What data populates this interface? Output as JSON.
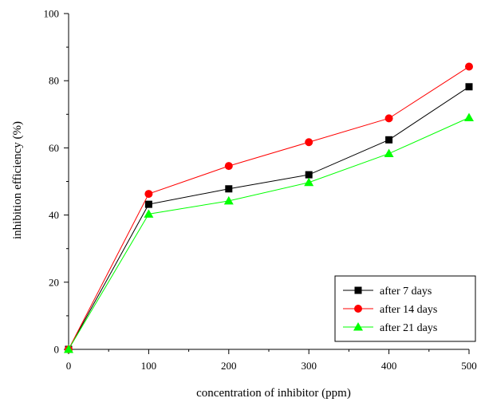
{
  "chart_data": {
    "type": "line",
    "title": "",
    "xlabel": "concentration of inhibitor (ppm)",
    "ylabel": "inhibition efficiency (%)",
    "xlim": [
      0,
      500
    ],
    "ylim": [
      0,
      100
    ],
    "xticks": [
      0,
      100,
      200,
      300,
      400,
      500
    ],
    "yticks": [
      0,
      20,
      40,
      60,
      80,
      100
    ],
    "xtick_labels": [
      "0",
      "100",
      "200",
      "300",
      "400",
      "500"
    ],
    "ytick_labels": [
      "0",
      "20",
      "40",
      "60",
      "80",
      "100"
    ],
    "grid": false,
    "legend_position": "bottom-right",
    "x": [
      0,
      100,
      200,
      300,
      400,
      500
    ],
    "series": [
      {
        "name": "after 7 days",
        "color": "#000000",
        "marker": "square",
        "values": [
          0,
          43.2,
          47.8,
          52.0,
          62.4,
          78.2
        ]
      },
      {
        "name": "after 14 days",
        "color": "#ff0000",
        "marker": "circle",
        "values": [
          0,
          46.3,
          54.6,
          61.7,
          68.8,
          84.2
        ]
      },
      {
        "name": "after 21 days",
        "color": "#00ff00",
        "marker": "triangle",
        "values": [
          0,
          40.3,
          44.2,
          49.7,
          58.3,
          69.0
        ]
      }
    ]
  }
}
